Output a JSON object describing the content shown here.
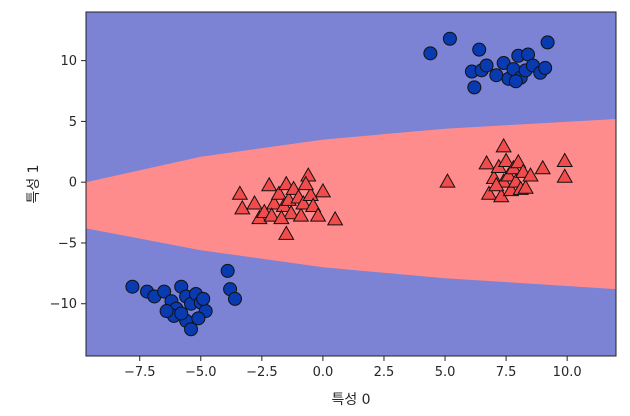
{
  "chart_data": {
    "type": "scatter",
    "title": "",
    "xlabel": "특성 0",
    "ylabel": "특성 1",
    "xlim": [
      -9.7,
      12.0
    ],
    "ylim": [
      -14.3,
      14.0
    ],
    "x_ticks": [
      -7.5,
      -5.0,
      -2.5,
      0.0,
      2.5,
      5.0,
      7.5,
      10.0
    ],
    "x_tick_labels": [
      "−7.5",
      "−5.0",
      "−2.5",
      "0.0",
      "2.5",
      "5.0",
      "7.5",
      "10.0"
    ],
    "y_ticks": [
      10,
      5,
      0,
      -5,
      -10
    ],
    "y_tick_labels": [
      "10",
      "5",
      "0",
      "−5",
      "−10"
    ],
    "grid": false,
    "background": {
      "description": "decision regions: class 0 (blue) outside, class 1 (red) inside a parabola-like band",
      "upper_boundary": [
        [
          -9.7,
          0.0
        ],
        [
          -5.0,
          2.1
        ],
        [
          0.0,
          3.5
        ],
        [
          5.0,
          4.4
        ],
        [
          12.0,
          5.2
        ]
      ],
      "lower_boundary": [
        [
          -9.7,
          -3.8
        ],
        [
          -5.0,
          -5.6
        ],
        [
          0.0,
          -7.0
        ],
        [
          5.0,
          -7.9
        ],
        [
          12.0,
          -8.8
        ]
      ],
      "outside_color": "#7c83d4",
      "inside_color": "#ff8c8c"
    },
    "series": [
      {
        "marker": "circle",
        "color": "#0a3ab0",
        "points": [
          [
            -7.8,
            -8.6
          ],
          [
            -7.2,
            -9.0
          ],
          [
            -6.9,
            -9.4
          ],
          [
            -6.5,
            -9.0
          ],
          [
            -6.2,
            -9.8
          ],
          [
            -6.0,
            -10.4
          ],
          [
            -5.8,
            -8.6
          ],
          [
            -5.6,
            -9.4
          ],
          [
            -5.4,
            -10.0
          ],
          [
            -5.2,
            -9.2
          ],
          [
            -5.0,
            -9.9
          ],
          [
            -4.8,
            -10.6
          ],
          [
            -6.1,
            -11.0
          ],
          [
            -5.6,
            -11.4
          ],
          [
            -5.4,
            -12.1
          ],
          [
            -5.8,
            -10.8
          ],
          [
            -5.1,
            -11.2
          ],
          [
            -4.9,
            -9.6
          ],
          [
            -3.9,
            -7.3
          ],
          [
            -3.8,
            -8.8
          ],
          [
            -3.6,
            -9.6
          ],
          [
            -6.4,
            -10.6
          ],
          [
            4.4,
            10.6
          ],
          [
            5.2,
            11.8
          ],
          [
            6.4,
            10.9
          ],
          [
            6.1,
            9.1
          ],
          [
            6.2,
            7.8
          ],
          [
            6.5,
            9.2
          ],
          [
            6.7,
            9.6
          ],
          [
            7.1,
            8.8
          ],
          [
            7.4,
            9.8
          ],
          [
            7.6,
            8.5
          ],
          [
            7.8,
            9.3
          ],
          [
            8.0,
            10.4
          ],
          [
            8.1,
            8.6
          ],
          [
            8.3,
            9.2
          ],
          [
            8.4,
            10.5
          ],
          [
            8.6,
            9.6
          ],
          [
            8.9,
            9.0
          ],
          [
            9.1,
            9.4
          ],
          [
            9.2,
            11.5
          ],
          [
            7.9,
            8.3
          ]
        ]
      },
      {
        "marker": "triangle",
        "color": "#f24b4b",
        "points": [
          [
            -3.4,
            -1.0
          ],
          [
            -3.3,
            -2.2
          ],
          [
            -2.8,
            -1.8
          ],
          [
            -2.6,
            -3.0
          ],
          [
            -2.4,
            -2.5
          ],
          [
            -2.2,
            -0.3
          ],
          [
            -2.0,
            -1.8
          ],
          [
            -2.1,
            -2.8
          ],
          [
            -1.8,
            -1.0
          ],
          [
            -1.6,
            -2.0
          ],
          [
            -1.5,
            -0.2
          ],
          [
            -1.4,
            -1.5
          ],
          [
            -1.3,
            -2.6
          ],
          [
            -1.5,
            -4.3
          ],
          [
            -1.2,
            -0.6
          ],
          [
            -1.0,
            -1.3
          ],
          [
            -0.9,
            -2.8
          ],
          [
            -0.8,
            -1.8
          ],
          [
            -0.6,
            0.5
          ],
          [
            -0.5,
            -1.1
          ],
          [
            -0.4,
            -2.0
          ],
          [
            -0.2,
            -2.8
          ],
          [
            0.0,
            -0.8
          ],
          [
            0.5,
            -3.1
          ],
          [
            -1.7,
            -3.0
          ],
          [
            -0.7,
            -0.2
          ],
          [
            5.1,
            0.0
          ],
          [
            6.7,
            1.5
          ],
          [
            6.8,
            -1.0
          ],
          [
            7.0,
            0.3
          ],
          [
            7.2,
            1.2
          ],
          [
            7.3,
            -1.2
          ],
          [
            7.4,
            2.9
          ],
          [
            7.4,
            0.0
          ],
          [
            7.5,
            1.7
          ],
          [
            7.6,
            0.5
          ],
          [
            7.7,
            -0.7
          ],
          [
            7.8,
            1.1
          ],
          [
            7.9,
            0.0
          ],
          [
            8.0,
            1.6
          ],
          [
            8.1,
            -0.6
          ],
          [
            8.2,
            0.8
          ],
          [
            8.3,
            -0.5
          ],
          [
            8.5,
            0.5
          ],
          [
            9.0,
            1.1
          ],
          [
            9.9,
            1.7
          ],
          [
            9.9,
            0.4
          ],
          [
            7.1,
            -0.3
          ]
        ]
      }
    ]
  }
}
